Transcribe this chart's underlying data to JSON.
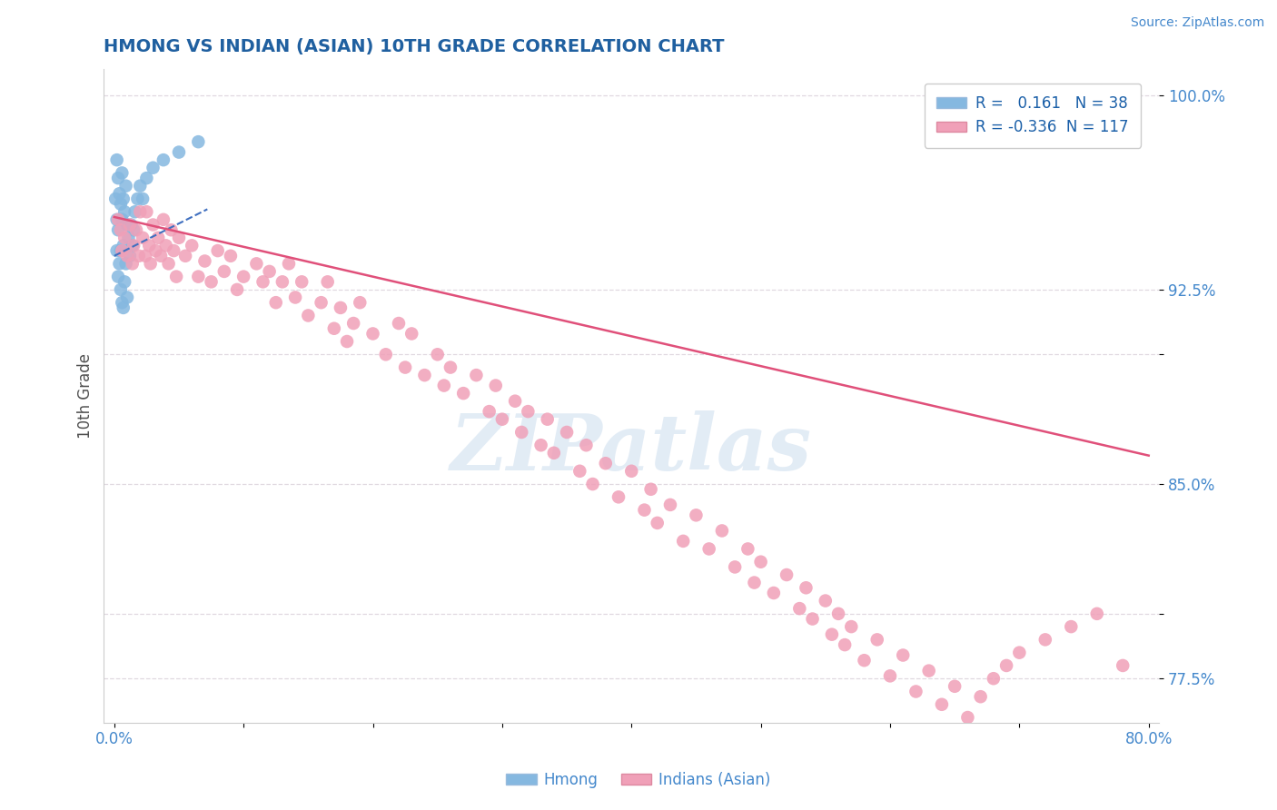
{
  "title": "HMONG VS INDIAN (ASIAN) 10TH GRADE CORRELATION CHART",
  "ylabel": "10th Grade",
  "source_text": "Source: ZipAtlas.com",
  "watermark": "ZIPatlas",
  "hmong_color": "#85b8e0",
  "indian_color": "#f0a0b8",
  "trendline_hmong_color": "#4070c0",
  "trendline_indian_color": "#e0507a",
  "hmong_R": 0.161,
  "hmong_N": 38,
  "indian_R": -0.336,
  "indian_N": 117,
  "grid_color": "#e0d8e0",
  "title_color": "#2060a0",
  "axis_label_color": "#505050",
  "tick_color": "#4488cc",
  "source_color": "#4488cc",
  "legend_label_color": "#1a5fa8",
  "xlim": [
    -0.008,
    0.808
  ],
  "ylim": [
    0.758,
    1.01
  ],
  "hmong_x": [
    0.001,
    0.002,
    0.002,
    0.002,
    0.003,
    0.003,
    0.003,
    0.004,
    0.004,
    0.005,
    0.005,
    0.005,
    0.006,
    0.006,
    0.006,
    0.007,
    0.007,
    0.007,
    0.008,
    0.008,
    0.009,
    0.009,
    0.01,
    0.01,
    0.011,
    0.012,
    0.013,
    0.014,
    0.015,
    0.016,
    0.018,
    0.02,
    0.022,
    0.025,
    0.03,
    0.038,
    0.05,
    0.065
  ],
  "hmong_y": [
    0.96,
    0.975,
    0.952,
    0.94,
    0.968,
    0.948,
    0.93,
    0.962,
    0.935,
    0.958,
    0.94,
    0.925,
    0.97,
    0.952,
    0.92,
    0.96,
    0.942,
    0.918,
    0.955,
    0.928,
    0.965,
    0.935,
    0.95,
    0.922,
    0.945,
    0.938,
    0.95,
    0.942,
    0.948,
    0.955,
    0.96,
    0.965,
    0.96,
    0.968,
    0.972,
    0.975,
    0.978,
    0.982
  ],
  "indian_x": [
    0.003,
    0.005,
    0.006,
    0.008,
    0.01,
    0.012,
    0.014,
    0.015,
    0.017,
    0.019,
    0.02,
    0.022,
    0.024,
    0.025,
    0.027,
    0.028,
    0.03,
    0.032,
    0.034,
    0.036,
    0.038,
    0.04,
    0.042,
    0.044,
    0.046,
    0.048,
    0.05,
    0.055,
    0.06,
    0.065,
    0.07,
    0.075,
    0.08,
    0.085,
    0.09,
    0.095,
    0.1,
    0.11,
    0.115,
    0.12,
    0.125,
    0.13,
    0.135,
    0.14,
    0.145,
    0.15,
    0.16,
    0.165,
    0.17,
    0.175,
    0.18,
    0.185,
    0.19,
    0.2,
    0.21,
    0.22,
    0.225,
    0.23,
    0.24,
    0.25,
    0.255,
    0.26,
    0.27,
    0.28,
    0.29,
    0.295,
    0.3,
    0.31,
    0.315,
    0.32,
    0.33,
    0.335,
    0.34,
    0.35,
    0.36,
    0.365,
    0.37,
    0.38,
    0.39,
    0.4,
    0.41,
    0.415,
    0.42,
    0.43,
    0.44,
    0.45,
    0.46,
    0.47,
    0.48,
    0.49,
    0.495,
    0.5,
    0.51,
    0.52,
    0.53,
    0.535,
    0.54,
    0.55,
    0.555,
    0.56,
    0.565,
    0.57,
    0.58,
    0.59,
    0.6,
    0.61,
    0.62,
    0.63,
    0.64,
    0.65,
    0.66,
    0.67,
    0.68,
    0.69,
    0.7,
    0.72,
    0.74,
    0.76,
    0.78
  ],
  "indian_y": [
    0.952,
    0.948,
    0.94,
    0.945,
    0.938,
    0.95,
    0.935,
    0.942,
    0.948,
    0.938,
    0.955,
    0.945,
    0.938,
    0.955,
    0.942,
    0.935,
    0.95,
    0.94,
    0.945,
    0.938,
    0.952,
    0.942,
    0.935,
    0.948,
    0.94,
    0.93,
    0.945,
    0.938,
    0.942,
    0.93,
    0.936,
    0.928,
    0.94,
    0.932,
    0.938,
    0.925,
    0.93,
    0.935,
    0.928,
    0.932,
    0.92,
    0.928,
    0.935,
    0.922,
    0.928,
    0.915,
    0.92,
    0.928,
    0.91,
    0.918,
    0.905,
    0.912,
    0.92,
    0.908,
    0.9,
    0.912,
    0.895,
    0.908,
    0.892,
    0.9,
    0.888,
    0.895,
    0.885,
    0.892,
    0.878,
    0.888,
    0.875,
    0.882,
    0.87,
    0.878,
    0.865,
    0.875,
    0.862,
    0.87,
    0.855,
    0.865,
    0.85,
    0.858,
    0.845,
    0.855,
    0.84,
    0.848,
    0.835,
    0.842,
    0.828,
    0.838,
    0.825,
    0.832,
    0.818,
    0.825,
    0.812,
    0.82,
    0.808,
    0.815,
    0.802,
    0.81,
    0.798,
    0.805,
    0.792,
    0.8,
    0.788,
    0.795,
    0.782,
    0.79,
    0.776,
    0.784,
    0.77,
    0.778,
    0.765,
    0.772,
    0.76,
    0.768,
    0.775,
    0.78,
    0.785,
    0.79,
    0.795,
    0.8,
    0.78
  ]
}
